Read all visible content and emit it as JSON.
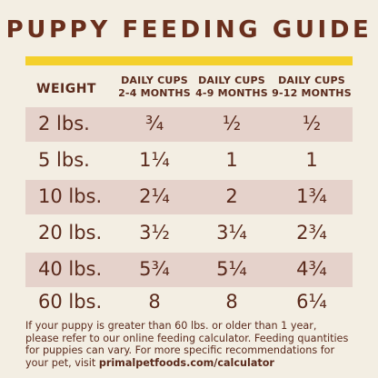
{
  "title": "PUPPY FEEDING GUIDE",
  "table": {
    "headers": {
      "weight": "WEIGHT",
      "col1_line1": "DAILY CUPS",
      "col1_line2": "2-4 MONTHS",
      "col2_line1": "DAILY CUPS",
      "col2_line2": "4-9 MONTHS",
      "col3_line1": "DAILY CUPS",
      "col3_line2": "9-12 MONTHS"
    },
    "rows": [
      {
        "weight": "2 lbs.",
        "m2_4": "¾",
        "m4_9": "½",
        "m9_12": "½"
      },
      {
        "weight": "5 lbs.",
        "m2_4": "1¼",
        "m4_9": "1",
        "m9_12": "1"
      },
      {
        "weight": "10 lbs.",
        "m2_4": "2¼",
        "m4_9": "2",
        "m9_12": "1¾"
      },
      {
        "weight": "20 lbs.",
        "m2_4": "3½",
        "m4_9": "3¼",
        "m9_12": "2¾"
      },
      {
        "weight": "40 lbs.",
        "m2_4": "5¾",
        "m4_9": "5¼",
        "m9_12": "4¾"
      },
      {
        "weight": "60 lbs.",
        "m2_4": "8",
        "m4_9": "8",
        "m9_12": "6¼"
      }
    ]
  },
  "footer": {
    "text": "If your puppy is greater than 60 lbs. or older than 1 year, please refer to our online feeding calculator. Feeding quantities for puppies can vary. For more specific recommendations for your pet, visit ",
    "link": "primalpetfoods.com/calculator"
  },
  "colors": {
    "background": "#f3eee3",
    "accent_bar": "#f4d02c",
    "row_shade": "#e5d2cb",
    "text": "#5a2a1c"
  }
}
